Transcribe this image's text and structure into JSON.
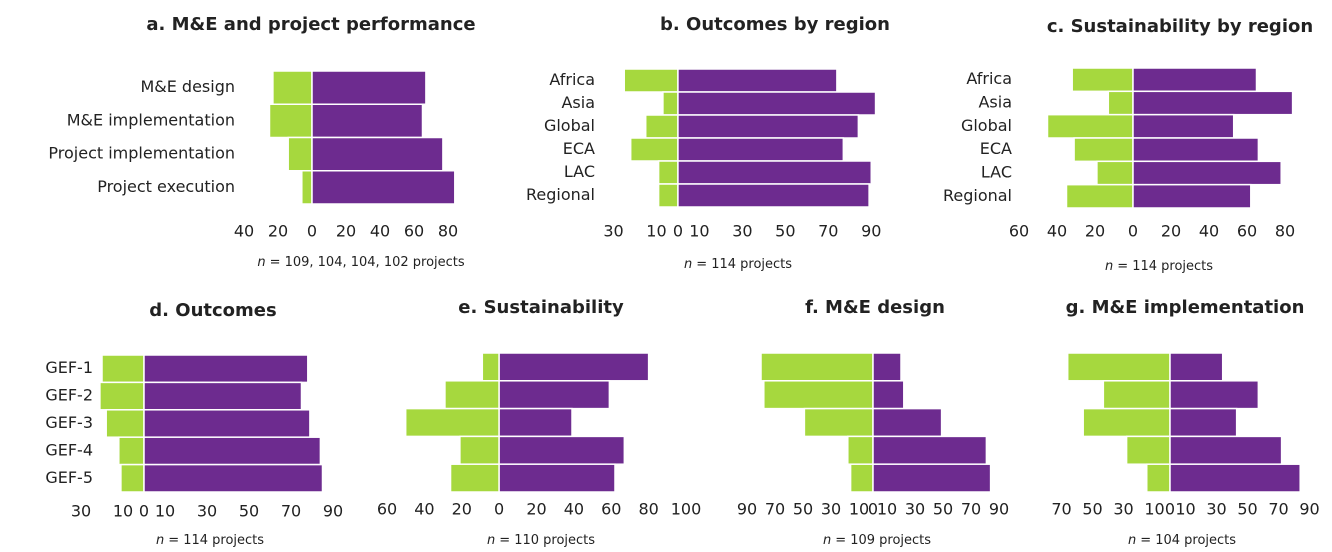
{
  "chart_data": [
    {
      "type": "bar",
      "orientation": "horizontal",
      "stacked": "diverging",
      "title": "a. M&E and project performance",
      "categories": [
        "M&E design",
        "M&E implementation",
        "Project implementation",
        "Project execution"
      ],
      "series": [
        {
          "color": "#a6d83e",
          "values": [
            -23,
            -25,
            -14,
            -6
          ]
        },
        {
          "color": "#6d2b8f",
          "values": [
            67,
            65,
            77,
            84
          ]
        }
      ],
      "xlim": [
        -40,
        85
      ],
      "xticks": [
        {
          "value": -40,
          "label": "40"
        },
        {
          "value": -20,
          "label": "20"
        },
        0,
        20,
        40,
        60,
        80
      ],
      "note": {
        "symbol": "n",
        "text": "= 109, 104, 104, 102 projects"
      }
    },
    {
      "type": "bar",
      "orientation": "horizontal",
      "stacked": "diverging",
      "title": "b. Outcomes by region",
      "categories": [
        "Africa",
        "Asia",
        "Global",
        "ECA",
        "LAC",
        "Regional"
      ],
      "series": [
        {
          "color": "#a6d83e",
          "values": [
            -25,
            -7,
            -15,
            -22,
            -9,
            -9
          ]
        },
        {
          "color": "#6d2b8f",
          "values": [
            74,
            92,
            84,
            77,
            90,
            89
          ]
        }
      ],
      "xlim": [
        -30,
        95
      ],
      "xticks": [
        {
          "value": -30,
          "label": "30"
        },
        {
          "value": -10,
          "label": "10"
        },
        0,
        10,
        30,
        50,
        70,
        90
      ],
      "note": {
        "symbol": "n",
        "text": "= 114 projects"
      }
    },
    {
      "type": "bar",
      "orientation": "horizontal",
      "stacked": "diverging",
      "title": "c. Sustainability by region",
      "categories": [
        "Africa",
        "Asia",
        "Global",
        "ECA",
        "LAC",
        "Regional"
      ],
      "series": [
        {
          "color": "#a6d83e",
          "values": [
            -32,
            -13,
            -45,
            -31,
            -19,
            -35
          ]
        },
        {
          "color": "#6d2b8f",
          "values": [
            65,
            84,
            53,
            66,
            78,
            62
          ]
        }
      ],
      "xlim": [
        -60,
        85
      ],
      "xticks": [
        {
          "value": -60,
          "label": "60"
        },
        {
          "value": -40,
          "label": "40"
        },
        {
          "value": -20,
          "label": "20"
        },
        0,
        20,
        40,
        60,
        80
      ],
      "note": {
        "symbol": "n",
        "text": "= 114 projects"
      }
    },
    {
      "type": "bar",
      "orientation": "horizontal",
      "stacked": "diverging",
      "title": "d. Outcomes",
      "categories": [
        "GEF-1",
        "GEF-2",
        "GEF-3",
        "GEF-4",
        "GEF-5"
      ],
      "series": [
        {
          "color": "#a6d83e",
          "values": [
            -20,
            -21,
            -18,
            -12,
            -11
          ]
        },
        {
          "color": "#6d2b8f",
          "values": [
            78,
            75,
            79,
            84,
            85
          ]
        }
      ],
      "xlim": [
        -30,
        90
      ],
      "xticks": [
        {
          "value": -30,
          "label": "30"
        },
        {
          "value": -10,
          "label": "10"
        },
        0,
        10,
        30,
        50,
        70,
        90
      ],
      "note": {
        "symbol": "n",
        "text": "= 114 projects"
      }
    },
    {
      "type": "bar",
      "orientation": "horizontal",
      "stacked": "diverging",
      "title": "e. Sustainability",
      "series": [
        {
          "color": "#a6d83e",
          "values": [
            -9,
            -29,
            -50,
            -21,
            -26
          ]
        },
        {
          "color": "#6d2b8f",
          "values": [
            80,
            59,
            39,
            67,
            62
          ]
        }
      ],
      "xlim": [
        -60,
        100
      ],
      "xticks": [
        {
          "value": -60,
          "label": "60"
        },
        {
          "value": -40,
          "label": "40"
        },
        {
          "value": -20,
          "label": "20"
        },
        0,
        20,
        40,
        60,
        80,
        100
      ],
      "note": {
        "symbol": "n",
        "text": "= 110 projects"
      }
    },
    {
      "type": "bar",
      "orientation": "horizontal",
      "stacked": "diverging",
      "title": "f. M&E design",
      "series": [
        {
          "color": "#a6d83e",
          "values": [
            -80,
            -78,
            -49,
            -18,
            -16
          ]
        },
        {
          "color": "#6d2b8f",
          "values": [
            20,
            22,
            49,
            81,
            84
          ]
        }
      ],
      "xlim": [
        -90,
        90
      ],
      "xticks": [
        {
          "value": -90,
          "label": "90"
        },
        {
          "value": -70,
          "label": "70"
        },
        {
          "value": -50,
          "label": "50"
        },
        {
          "value": -30,
          "label": "30"
        },
        {
          "value": -10,
          "label": "10"
        },
        0,
        10,
        30,
        50,
        70,
        90
      ],
      "note": {
        "symbol": "n",
        "text": "= 109 projects"
      }
    },
    {
      "type": "bar",
      "orientation": "horizontal",
      "stacked": "diverging",
      "title": "g. M&E implementation",
      "series": [
        {
          "color": "#a6d83e",
          "values": [
            -66,
            -43,
            -56,
            -28,
            -15
          ]
        },
        {
          "color": "#6d2b8f",
          "values": [
            34,
            57,
            43,
            72,
            84
          ]
        }
      ],
      "xlim": [
        -70,
        90
      ],
      "xticks": [
        {
          "value": -70,
          "label": "70"
        },
        {
          "value": -50,
          "label": "50"
        },
        {
          "value": -30,
          "label": "30"
        },
        {
          "value": -10,
          "label": "10"
        },
        0,
        10,
        30,
        50,
        70,
        90
      ],
      "note": {
        "symbol": "n",
        "text": "= 104 projects"
      }
    }
  ]
}
